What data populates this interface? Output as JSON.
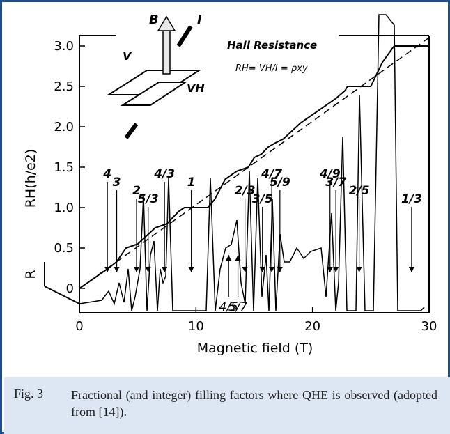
{
  "chart_data": {
    "type": "line",
    "xlabel": "Magnetic field (T)",
    "ylabel_left": "R",
    "ylabel_main": "RH(h/e2)",
    "xlim": [
      0,
      30
    ],
    "ylim": [
      0,
      3.0
    ],
    "x_ticks": [
      "0",
      "10",
      "20",
      "30"
    ],
    "y_ticks": [
      "0",
      "0.5",
      "1.0",
      "1.5",
      "2.0",
      "2.5",
      "3.0"
    ],
    "hall_title": "Hall Resistance",
    "hall_formula": "RH= VH/I = ρxy",
    "inset_labels": {
      "b": "B",
      "i": "I",
      "v": "V",
      "vh": "VH"
    },
    "hall_resistance": {
      "x": [
        0,
        2.5,
        3.2,
        4,
        5,
        6.5,
        7.5,
        8.5,
        9,
        11,
        11.6,
        12.5,
        13,
        13.5,
        14.5,
        15,
        15.6,
        16.2,
        16.8,
        17.5,
        19,
        21.5,
        22,
        22.8,
        23,
        25,
        26,
        27,
        30
      ],
      "y": [
        0,
        0.25,
        0.33,
        0.5,
        0.55,
        0.75,
        0.8,
        0.95,
        1.0,
        1.0,
        1.1,
        1.35,
        1.4,
        1.45,
        1.5,
        1.62,
        1.66,
        1.75,
        1.8,
        1.85,
        2.05,
        2.3,
        2.35,
        2.45,
        2.5,
        2.5,
        2.8,
        3.0,
        3.0
      ]
    },
    "filling_factors": [
      {
        "label": "4",
        "x": 2.4,
        "bold": true
      },
      {
        "label": "3",
        "x": 3.2,
        "bold": true
      },
      {
        "label": "2",
        "x": 4.9,
        "bold": true
      },
      {
        "label": "5/3",
        "x": 5.9,
        "bold": true
      },
      {
        "label": "4/3",
        "x": 7.3,
        "bold": true
      },
      {
        "label": "1",
        "x": 9.6,
        "bold": true
      },
      {
        "label": "2/3",
        "x": 14.2,
        "bold": true
      },
      {
        "label": "3/5",
        "x": 15.7,
        "bold": true
      },
      {
        "label": "4/7",
        "x": 16.5,
        "bold": true
      },
      {
        "label": "5/9",
        "x": 17.2,
        "bold": true
      },
      {
        "label": "5/7",
        "x": 13.6,
        "bold": false
      },
      {
        "label": "4/5",
        "x": 12.8,
        "bold": false
      },
      {
        "label": "4/9",
        "x": 21.5,
        "bold": true
      },
      {
        "label": "3/7",
        "x": 22.0,
        "bold": true
      },
      {
        "label": "2/5",
        "x": 24.0,
        "bold": true
      },
      {
        "label": "1/3",
        "x": 28.5,
        "bold": true
      }
    ]
  },
  "caption": {
    "label": "Fig. 3",
    "text": "Fractional (and integer) filling factors where QHE is observed (adopted from [14])."
  }
}
